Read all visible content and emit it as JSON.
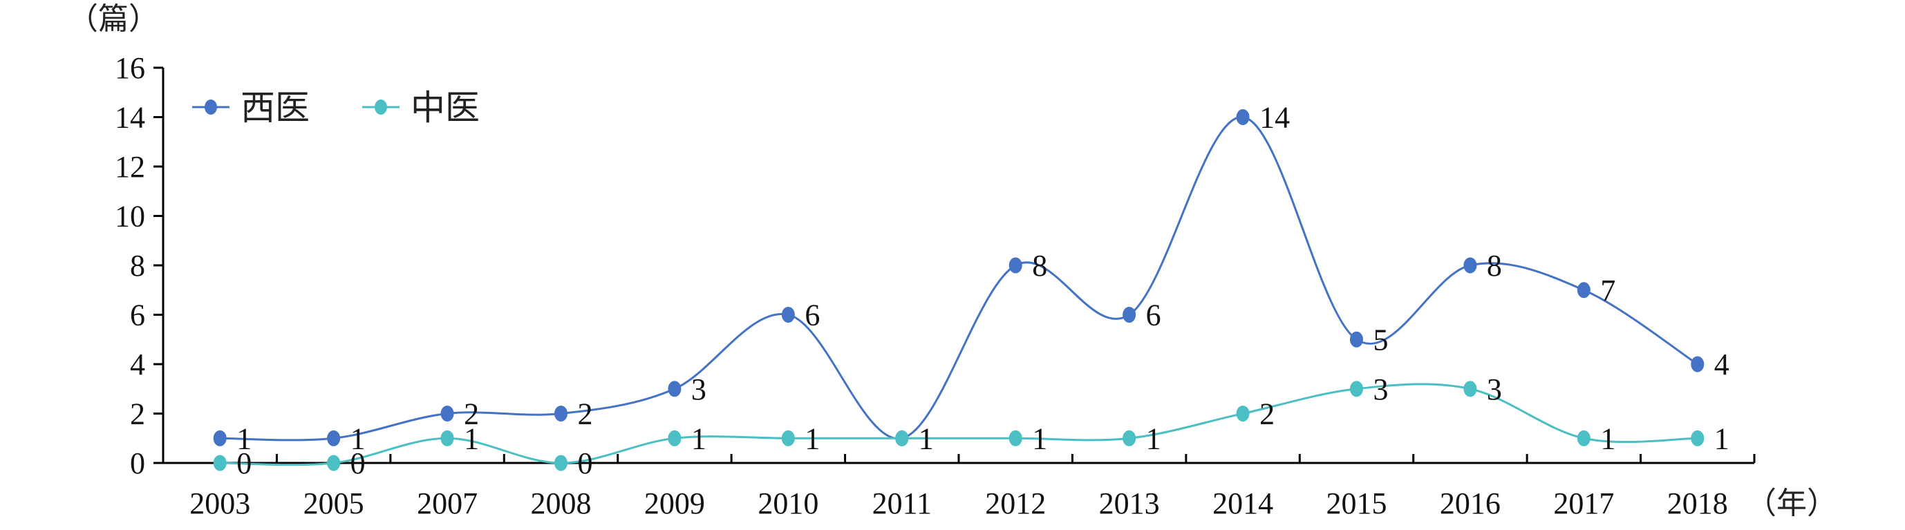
{
  "chart_data": {
    "type": "line",
    "y_unit_label": "（篇）",
    "x_unit_label": "（年）",
    "categories": [
      "2003",
      "2005",
      "2007",
      "2008",
      "2009",
      "2010",
      "2011",
      "2012",
      "2013",
      "2014",
      "2015",
      "2016",
      "2017",
      "2018"
    ],
    "ylim": [
      0,
      16
    ],
    "yticks": [
      "0",
      "2",
      "4",
      "6",
      "8",
      "10",
      "12",
      "14",
      "16"
    ],
    "legend_position": "top-left",
    "series": [
      {
        "name": "西医",
        "color": "#4472C4",
        "values": [
          1,
          1,
          2,
          2,
          3,
          6,
          1,
          8,
          6,
          14,
          5,
          8,
          7,
          4
        ]
      },
      {
        "name": "中医",
        "color": "#4BBFC3",
        "values": [
          0,
          0,
          1,
          0,
          1,
          1,
          1,
          1,
          1,
          2,
          3,
          3,
          1,
          1
        ]
      }
    ]
  }
}
